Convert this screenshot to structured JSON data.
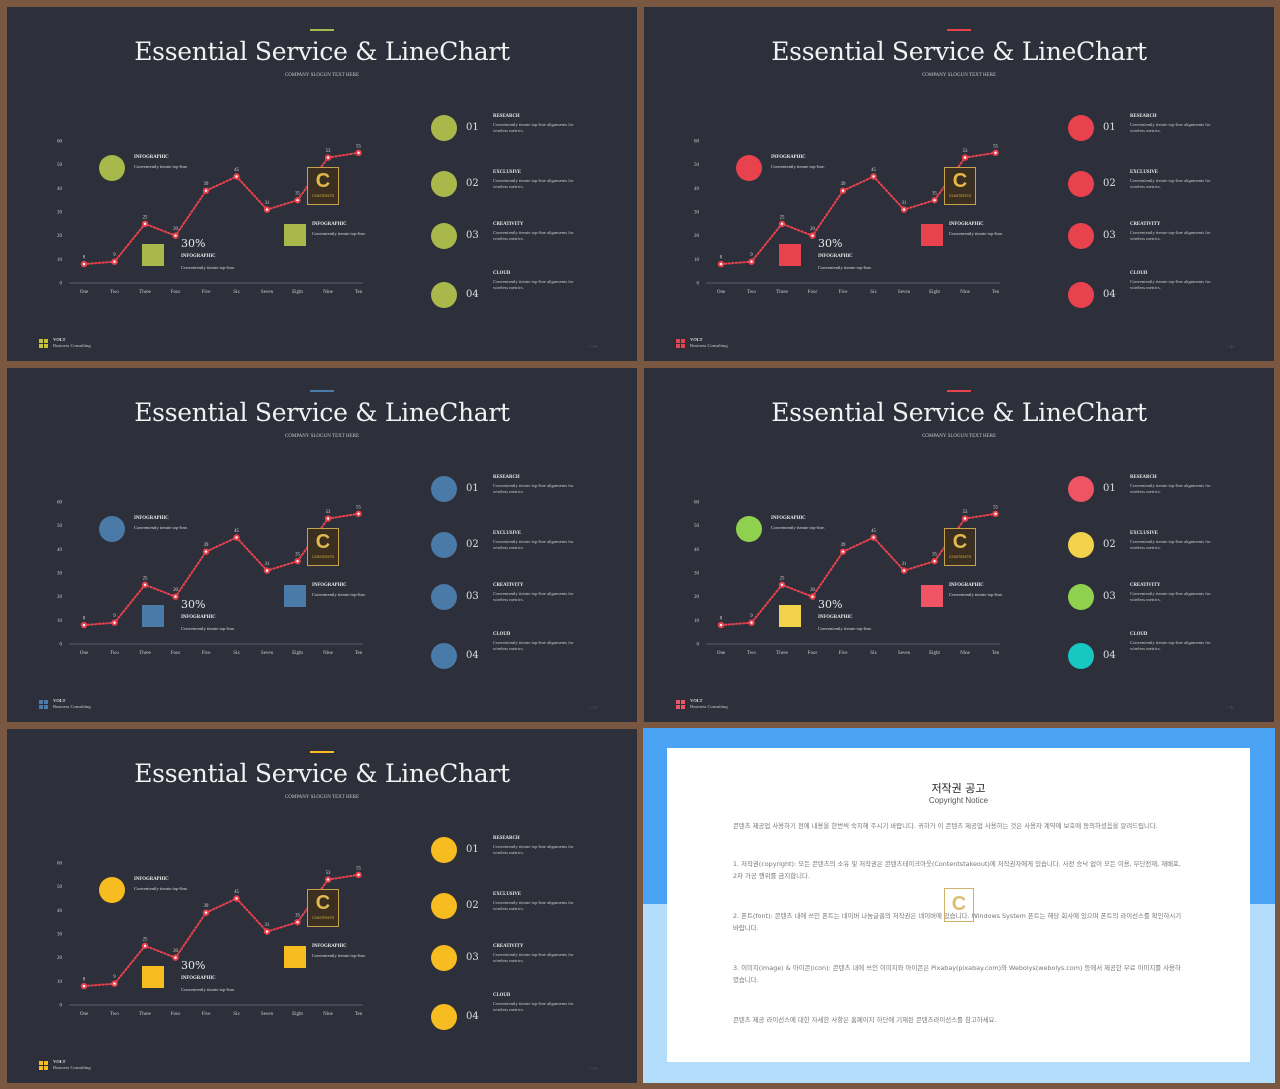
{
  "slides": [
    {
      "title": "Essential Service & LineChart",
      "slogan": "COMPANY SLOGUN TEXT HERE",
      "accent": "#a9b84a",
      "colors": {
        "circle": "#a9b84a",
        "square": "#a9b84a",
        "list": [
          "#a9b84a",
          "#a9b84a",
          "#a9b84a",
          "#a9b84a"
        ]
      },
      "footer_icon": "#c8c23a"
    },
    {
      "title": "Essential Service & LineChart",
      "slogan": "COMPANY SLOGUN TEXT HERE",
      "accent": "#e8424e",
      "colors": {
        "circle": "#e8424e",
        "square": "#e8424e",
        "list": [
          "#e8424e",
          "#e8424e",
          "#e8424e",
          "#e8424e"
        ]
      },
      "footer_icon": "#e8424e"
    },
    {
      "title": "Essential Service & LineChart",
      "slogan": "COMPANY SLOGUN TEXT HERE",
      "accent": "#4a7aa8",
      "colors": {
        "circle": "#4a7aa8",
        "square": "#4a7aa8",
        "list": [
          "#4a7aa8",
          "#4a7aa8",
          "#4a7aa8",
          "#4a7aa8"
        ]
      },
      "footer_icon": "#4a7aa8"
    },
    {
      "title": "Essential Service & LineChart",
      "slogan": "COMPANY SLOGUN TEXT HERE",
      "accent": "#e8424e",
      "colors": {
        "circle": "#8fd14f",
        "square": "#f2d24b",
        "list": [
          "#ef5464",
          "#f2d24b",
          "#8fd14f",
          "#16c8bf"
        ]
      },
      "square2": "#ef5464",
      "footer_icon": "#ef5464"
    },
    {
      "title": "Essential Service & LineChart",
      "slogan": "COMPANY SLOGUN TEXT HERE",
      "accent": "#f7bc1f",
      "colors": {
        "circle": "#f7bc1f",
        "square": "#f7bc1f",
        "list": [
          "#f7bc1f",
          "#f7bc1f",
          "#f7bc1f",
          "#f7bc1f"
        ]
      },
      "footer_icon": "#f7bc1f"
    }
  ],
  "common": {
    "infographic_label": "INFOGRAPHIC",
    "infographic_desc": "Conveniently iterate top-line.",
    "percent": "30%",
    "logo_letter": "C",
    "logo_text": "CONTENTS",
    "list": [
      {
        "num": "01",
        "head": "RESEARCH",
        "desc": "Conveniently iterate top-line alignments for wireless metrics."
      },
      {
        "num": "02",
        "head": "EXCLUSIVE",
        "desc": "Conveniently iterate top-line alignments for wireless metrics."
      },
      {
        "num": "03",
        "head": "CREATIVITY",
        "desc": "Conveniently iterate top-line alignments for wireless metrics."
      },
      {
        "num": "04",
        "head": "CLOUD",
        "desc": "Conveniently iterate top-line alignments for wireless metrics."
      }
    ],
    "footer_brand": "VOLT",
    "footer_sub": "Business  Consulting",
    "page_number": "/ / 01"
  },
  "chart_data": {
    "type": "line",
    "categories": [
      "One",
      "Two",
      "Three",
      "Four",
      "Five",
      "Six",
      "Seven",
      "Eight",
      "Nine",
      "Ten"
    ],
    "values": [
      8,
      9,
      25,
      20,
      39,
      45,
      31,
      35,
      53,
      55
    ],
    "ylim": [
      0,
      60
    ],
    "yticks": [
      0,
      10,
      20,
      30,
      40,
      50,
      60
    ],
    "line_color": "#e8424e",
    "style": "dotted"
  },
  "notice": {
    "title": "저작권 공고",
    "subtitle": "Copyright Notice",
    "paragraphs": [
      "콘텐츠 제공업 사용하기 전에 내용을 한번씩 숙지해 주시기 바랍니다. 귀하가 이 콘텐츠 제공업 사용하는 것은 사용자 계약에 보호에 동의하셨음을 알려드립니다.",
      "1. 저작권(copyright): 모든 콘텐츠의 소유 및 저작권은 콘텐츠테이크아웃(Contentstakeout)에 저작권자에게 있습니다. 사전 승낙 없이 모든 이용, 무단전재, 재배포, 2차 가공 행위를 금지합니다.",
      "2. 폰트(font): 콘텐츠 내에 쓰인 폰트는 네이버 나눔글꼴의 저작권은 네이버에 있습니다. Windows System 폰트는 해당 회사에 있으며 폰트의 라이선스를 확인하시기 바랍니다.",
      "3. 이미지(image) & 아이콘(icon): 콘텐츠 내에 쓰인 이미지와 아이콘은 Pixabay(pixabay.com)와 Webolys(webolys.com) 등에서 제공한 무료 이미지를 사용하였습니다.",
      "콘텐츠 제공 라이선스에 대한 자세한 사항은 홈페이지 하단에 기재된 콘텐츠라이선스를 참고하세요."
    ]
  }
}
